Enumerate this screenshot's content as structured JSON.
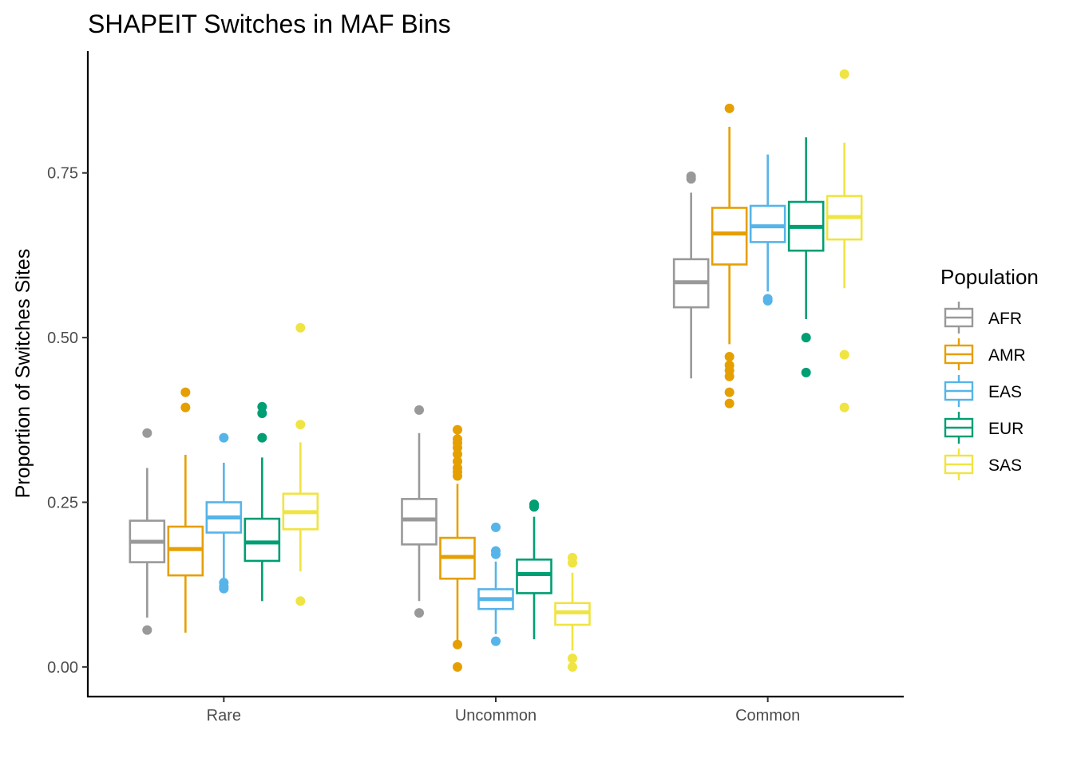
{
  "chart_data": {
    "type": "box",
    "title": "SHAPEIT Switches in MAF Bins",
    "xlabel": "",
    "ylabel": "Proportion of Switches Sites",
    "ylim": [
      -0.045,
      0.935
    ],
    "yticks": [
      0.0,
      0.25,
      0.5,
      0.75
    ],
    "ytick_labels": [
      "0.00",
      "0.25",
      "0.50",
      "0.75"
    ],
    "categories": [
      "Rare",
      "Uncommon",
      "Common"
    ],
    "grid": false,
    "legend": {
      "title": "Population",
      "position": "right"
    },
    "series": [
      {
        "name": "AFR",
        "color": "#999999",
        "boxes": [
          {
            "whisker_low": 0.075,
            "q1": 0.159,
            "median": 0.19,
            "q3": 0.222,
            "whisker_high": 0.302,
            "outliers": [
              0.056,
              0.355
            ]
          },
          {
            "whisker_low": 0.1,
            "q1": 0.186,
            "median": 0.224,
            "q3": 0.255,
            "whisker_high": 0.355,
            "outliers": [
              0.082,
              0.39
            ]
          },
          {
            "whisker_low": 0.438,
            "q1": 0.546,
            "median": 0.584,
            "q3": 0.619,
            "whisker_high": 0.72,
            "outliers": [
              0.741,
              0.745
            ]
          }
        ]
      },
      {
        "name": "AMR",
        "color": "#E69F00",
        "boxes": [
          {
            "whisker_low": 0.052,
            "q1": 0.139,
            "median": 0.179,
            "q3": 0.213,
            "whisker_high": 0.322,
            "outliers": [
              0.394,
              0.417
            ]
          },
          {
            "whisker_low": 0.04,
            "q1": 0.134,
            "median": 0.167,
            "q3": 0.196,
            "whisker_high": 0.278,
            "outliers": [
              0.0,
              0.034,
              0.29,
              0.296,
              0.302,
              0.312,
              0.323,
              0.333,
              0.34,
              0.346,
              0.36
            ]
          },
          {
            "whisker_low": 0.49,
            "q1": 0.611,
            "median": 0.658,
            "q3": 0.697,
            "whisker_high": 0.82,
            "outliers": [
              0.4,
              0.417,
              0.441,
              0.45,
              0.458,
              0.471,
              0.848
            ]
          }
        ]
      },
      {
        "name": "EAS",
        "color": "#56B4E9",
        "boxes": [
          {
            "whisker_low": 0.135,
            "q1": 0.204,
            "median": 0.227,
            "q3": 0.25,
            "whisker_high": 0.31,
            "outliers": [
              0.119,
              0.122,
              0.128,
              0.348
            ]
          },
          {
            "whisker_low": 0.05,
            "q1": 0.088,
            "median": 0.103,
            "q3": 0.118,
            "whisker_high": 0.16,
            "outliers": [
              0.039,
              0.171,
              0.176,
              0.212
            ]
          },
          {
            "whisker_low": 0.57,
            "q1": 0.645,
            "median": 0.669,
            "q3": 0.7,
            "whisker_high": 0.778,
            "outliers": [
              0.556,
              0.559
            ]
          }
        ]
      },
      {
        "name": "EUR",
        "color": "#009E73",
        "boxes": [
          {
            "whisker_low": 0.1,
            "q1": 0.161,
            "median": 0.189,
            "q3": 0.225,
            "whisker_high": 0.318,
            "outliers": [
              0.348,
              0.385,
              0.395
            ]
          },
          {
            "whisker_low": 0.042,
            "q1": 0.112,
            "median": 0.141,
            "q3": 0.163,
            "whisker_high": 0.228,
            "outliers": [
              0.243,
              0.247
            ]
          },
          {
            "whisker_low": 0.528,
            "q1": 0.632,
            "median": 0.668,
            "q3": 0.706,
            "whisker_high": 0.804,
            "outliers": [
              0.447,
              0.5
            ]
          }
        ]
      },
      {
        "name": "SAS",
        "color": "#F0E442",
        "boxes": [
          {
            "whisker_low": 0.145,
            "q1": 0.209,
            "median": 0.235,
            "q3": 0.263,
            "whisker_high": 0.341,
            "outliers": [
              0.1,
              0.368,
              0.515
            ]
          },
          {
            "whisker_low": 0.025,
            "q1": 0.064,
            "median": 0.083,
            "q3": 0.097,
            "whisker_high": 0.143,
            "outliers": [
              0.0,
              0.013,
              0.158,
              0.166
            ]
          },
          {
            "whisker_low": 0.575,
            "q1": 0.649,
            "median": 0.683,
            "q3": 0.715,
            "whisker_high": 0.796,
            "outliers": [
              0.394,
              0.474,
              0.9
            ]
          }
        ]
      }
    ]
  }
}
